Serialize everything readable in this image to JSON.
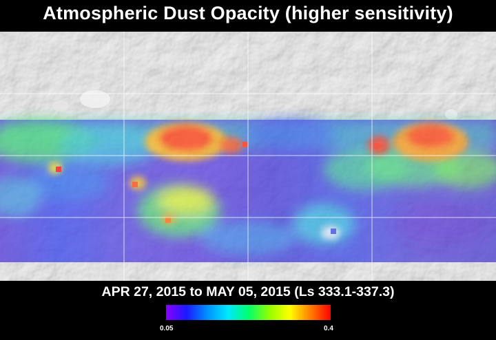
{
  "title": "Atmospheric Dust Opacity (higher sensitivity)",
  "date_range": "APR 27, 2015 to MAY 05, 2015 (Ls 333.1-337.3)",
  "colorbar": {
    "min_label": "0.05",
    "max_label": "0.4",
    "colors": [
      "#8a00ff",
      "#1a1aff",
      "#0090ff",
      "#00e8ff",
      "#00ff70",
      "#90ff00",
      "#ffff00",
      "#ff8000",
      "#ff0000"
    ]
  }
}
